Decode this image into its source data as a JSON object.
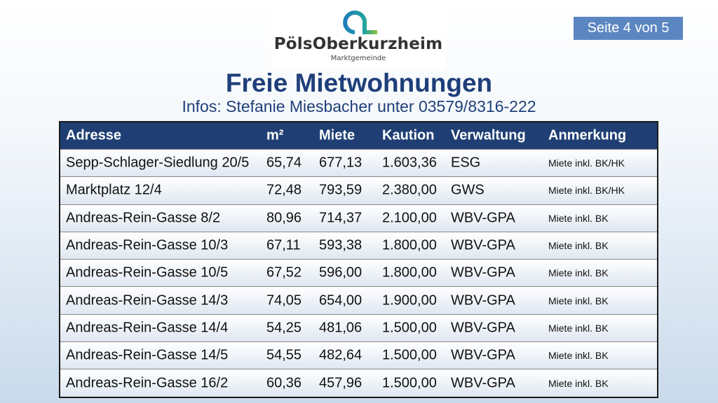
{
  "logo": {
    "name": "PölsOberkurzheim",
    "subtitle": "Marktgemeinde"
  },
  "page_indicator": "Seite 4 von 5",
  "title": "Freie Mietwohnungen",
  "info": "Infos: Stefanie Miesbacher unter 03579/8316-222",
  "colors": {
    "header": "#1f3f74",
    "title": "#1f3f7a",
    "page_badge": "#5b86c1"
  },
  "table": {
    "headers": [
      "Adresse",
      "m²",
      "Miete",
      "Kaution",
      "Verwaltung",
      "Anmerkung"
    ],
    "rows": [
      [
        "Sepp-Schlager-Siedlung 20/5",
        "65,74",
        "677,13",
        "1.603,36",
        "ESG",
        "Miete inkl. BK/HK"
      ],
      [
        "Marktplatz 12/4",
        "72,48",
        "793,59",
        "2.380,00",
        "GWS",
        "Miete inkl. BK/HK"
      ],
      [
        "Andreas-Rein-Gasse 8/2",
        "80,96",
        "714,37",
        "2.100,00",
        "WBV-GPA",
        "Miete inkl. BK"
      ],
      [
        "Andreas-Rein-Gasse 10/3",
        "67,11",
        "593,38",
        "1.800,00",
        "WBV-GPA",
        "Miete inkl. BK"
      ],
      [
        "Andreas-Rein-Gasse 10/5",
        "67,52",
        "596,00",
        "1.800,00",
        "WBV-GPA",
        "Miete inkl. BK"
      ],
      [
        "Andreas-Rein-Gasse 14/3",
        "74,05",
        "654,00",
        "1.900,00",
        "WBV-GPA",
        "Miete inkl. BK"
      ],
      [
        "Andreas-Rein-Gasse 14/4",
        "54,25",
        "481,06",
        "1.500,00",
        "WBV-GPA",
        "Miete inkl. BK"
      ],
      [
        "Andreas-Rein-Gasse 14/5",
        "54,55",
        "482,64",
        "1.500,00",
        "WBV-GPA",
        "Miete inkl. BK"
      ],
      [
        "Andreas-Rein-Gasse 16/2",
        "60,36",
        "457,96",
        "1.500,00",
        "WBV-GPA",
        "Miete inkl. BK"
      ]
    ]
  }
}
